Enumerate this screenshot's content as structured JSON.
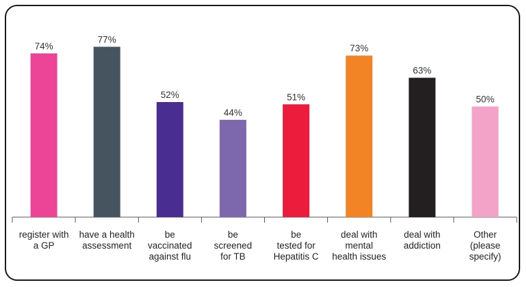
{
  "chart_data": {
    "type": "bar",
    "title": "",
    "xlabel": "",
    "ylabel": "",
    "ylim": [
      0,
      100
    ],
    "grid": false,
    "legend": "none",
    "categories": [
      [
        "register with",
        "a GP"
      ],
      [
        "have a health",
        "assessment"
      ],
      [
        "be",
        "vaccinated",
        "against flu"
      ],
      [
        "be",
        "screened",
        "for TB"
      ],
      [
        "be",
        "tested for",
        "Hepatitis C"
      ],
      [
        "deal with",
        "mental",
        "health issues"
      ],
      [
        "deal with",
        "addiction"
      ],
      [
        "Other",
        "(please",
        "specify)"
      ]
    ],
    "values": [
      74,
      77,
      52,
      44,
      51,
      73,
      63,
      50
    ],
    "value_labels": [
      "74%",
      "77%",
      "52%",
      "44%",
      "51%",
      "73%",
      "63%",
      "50%"
    ],
    "colors": [
      "#ec4598",
      "#45545e",
      "#4a2d91",
      "#7d68ae",
      "#ec1c3d",
      "#f38425",
      "#231f20",
      "#f4a3c8"
    ]
  }
}
